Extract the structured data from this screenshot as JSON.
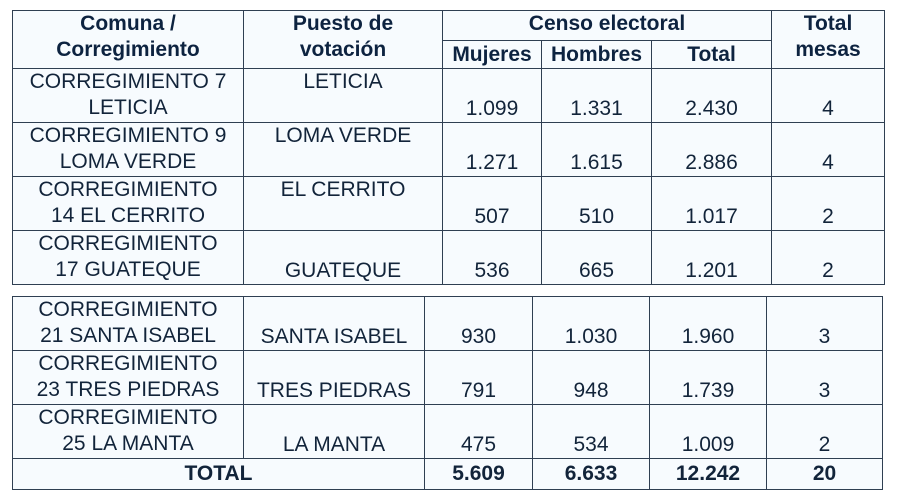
{
  "headers": {
    "comuna": "Comuna /",
    "comuna2": "Corregimiento",
    "puesto": "Puesto de",
    "puesto2": "votación",
    "censo": "Censo electoral",
    "mujeres": "Mujeres",
    "hombres": "Hombres",
    "total": "Total",
    "mesas": "Total",
    "mesas2": "mesas"
  },
  "rows": [
    {
      "name1": "CORREGIMIENTO 7",
      "name2": "LETICIA",
      "puesto": "LETICIA",
      "mujeres": "1.099",
      "hombres": "1.331",
      "total": "2.430",
      "mesas": "4"
    },
    {
      "name1": "CORREGIMIENTO 9",
      "name2": "LOMA VERDE",
      "puesto": "LOMA VERDE",
      "mujeres": "1.271",
      "hombres": "1.615",
      "total": "2.886",
      "mesas": "4"
    },
    {
      "name1": "CORREGIMIENTO",
      "name2": "14 EL CERRITO",
      "puesto": "EL CERRITO",
      "mujeres": "507",
      "hombres": "510",
      "total": "1.017",
      "mesas": "2"
    },
    {
      "name1": "CORREGIMIENTO",
      "name2": "17 GUATEQUE",
      "puesto": "GUATEQUE",
      "mujeres": "536",
      "hombres": "665",
      "total": "1.201",
      "mesas": "2"
    },
    {
      "name1": "CORREGIMIENTO",
      "name2": "21 SANTA ISABEL",
      "puesto": "SANTA ISABEL",
      "mujeres": "930",
      "hombres": "1.030",
      "total": "1.960",
      "mesas": "3"
    },
    {
      "name1": "CORREGIMIENTO",
      "name2": "23 TRES PIEDRAS",
      "puesto": "TRES PIEDRAS",
      "mujeres": "791",
      "hombres": "948",
      "total": "1.739",
      "mesas": "3"
    },
    {
      "name1": "CORREGIMIENTO",
      "name2": "25 LA MANTA",
      "puesto": "LA MANTA",
      "mujeres": "475",
      "hombres": "534",
      "total": "1.009",
      "mesas": "2"
    }
  ],
  "totals": {
    "label": "TOTAL",
    "mujeres": "5.609",
    "hombres": "6.633",
    "total": "12.242",
    "mesas": "20"
  }
}
